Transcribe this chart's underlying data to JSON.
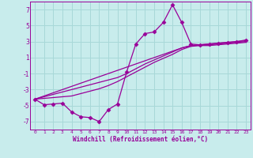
{
  "xlabel": "Windchill (Refroidissement éolien,°C)",
  "bg_color": "#c8ecec",
  "grid_color": "#a8d8d8",
  "line_color": "#990099",
  "xlim": [
    -0.5,
    23.5
  ],
  "ylim": [
    -8,
    8
  ],
  "xticks": [
    0,
    1,
    2,
    3,
    4,
    5,
    6,
    7,
    8,
    9,
    10,
    11,
    12,
    13,
    14,
    15,
    16,
    17,
    18,
    19,
    20,
    21,
    22,
    23
  ],
  "yticks": [
    -7,
    -5,
    -3,
    -1,
    1,
    3,
    5,
    7
  ],
  "series_with_markers": [
    -4.2,
    -4.9,
    -4.8,
    -4.7,
    -5.8,
    -6.4,
    -6.5,
    -7.0,
    -5.5,
    -4.8,
    -0.8,
    2.7,
    4.0,
    4.2,
    5.4,
    7.6,
    5.4,
    2.7,
    2.6,
    2.7,
    2.8,
    2.9,
    3.0,
    3.2
  ],
  "linear_series": [
    [
      -4.2,
      -3.8,
      -3.4,
      -3.0,
      -2.6,
      -2.2,
      -1.8,
      -1.4,
      -1.0,
      -0.6,
      -0.2,
      0.2,
      0.6,
      1.0,
      1.4,
      1.8,
      2.2,
      2.5,
      2.6,
      2.7,
      2.8,
      2.9,
      3.0,
      3.1
    ],
    [
      -4.2,
      -3.9,
      -3.6,
      -3.3,
      -3.0,
      -2.7,
      -2.4,
      -2.1,
      -1.8,
      -1.5,
      -1.0,
      -0.4,
      0.2,
      0.7,
      1.2,
      1.7,
      2.2,
      2.5,
      2.6,
      2.6,
      2.7,
      2.8,
      2.9,
      3.0
    ],
    [
      -4.2,
      -4.1,
      -4.0,
      -3.9,
      -3.8,
      -3.5,
      -3.2,
      -2.9,
      -2.5,
      -2.0,
      -1.4,
      -0.8,
      -0.2,
      0.4,
      0.9,
      1.4,
      2.0,
      2.4,
      2.5,
      2.5,
      2.6,
      2.7,
      2.8,
      2.9
    ]
  ],
  "marker": "D",
  "marker_size": 2.5,
  "line_width": 0.9
}
